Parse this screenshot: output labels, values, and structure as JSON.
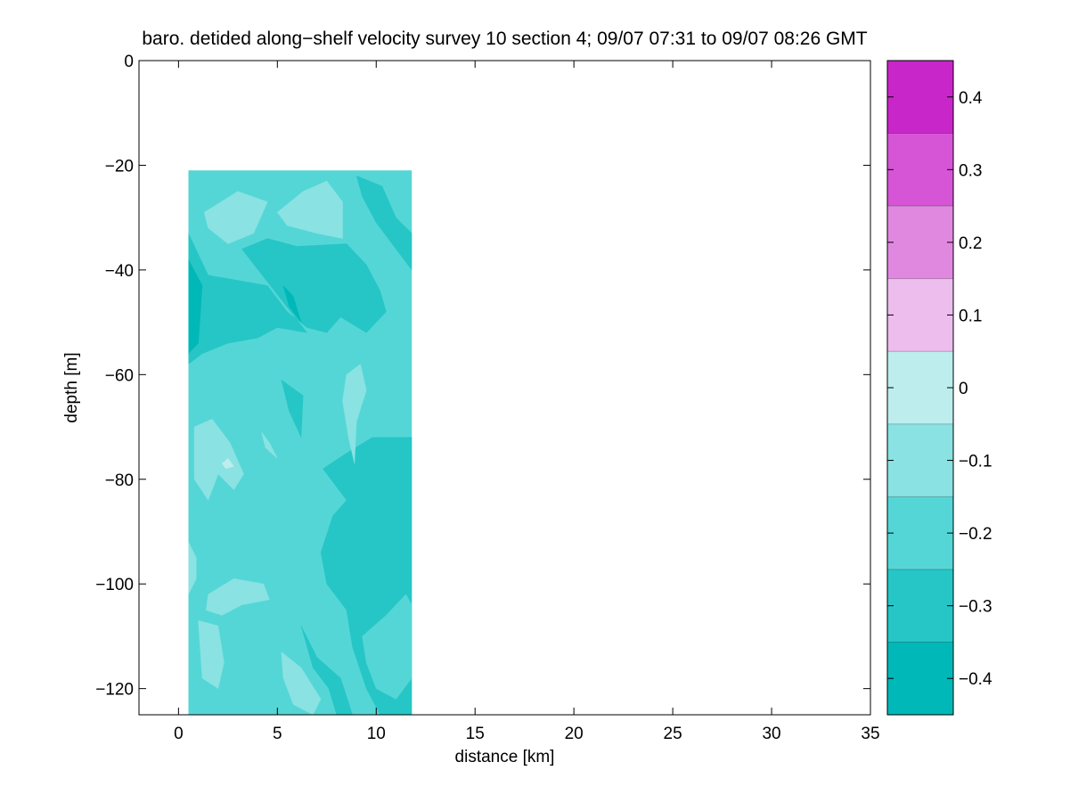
{
  "chart_data": {
    "type": "heatmap",
    "title": "baro. detided along−shelf velocity survey 10 section 4; 09/07 07:31 to 09/07 08:26 GMT",
    "xlabel": "distance [km]",
    "ylabel": "depth [m]",
    "xlim": [
      -2,
      35
    ],
    "ylim": [
      -125,
      0
    ],
    "xticks": [
      0,
      5,
      10,
      15,
      20,
      25,
      30,
      35
    ],
    "xtick_labels": [
      "0",
      "5",
      "10",
      "15",
      "20",
      "25",
      "30",
      "35"
    ],
    "yticks": [
      0,
      -20,
      -40,
      -60,
      -80,
      -100,
      -120
    ],
    "ytick_labels": [
      "0",
      "−20",
      "−40",
      "−60",
      "−80",
      "−100",
      "−120"
    ],
    "data_extent": {
      "x": [
        0.5,
        11.8
      ],
      "y": [
        -125,
        -21
      ]
    },
    "colorbar": {
      "levels": [
        -0.45,
        -0.35,
        -0.25,
        -0.15,
        -0.05,
        0.05,
        0.15,
        0.25,
        0.35,
        0.45
      ],
      "colors": [
        "#00b8b8",
        "#26c6c6",
        "#55d6d6",
        "#8ae2e2",
        "#bdeded",
        "#edbded",
        "#e088e0",
        "#d655d6",
        "#c926c9",
        "#b800b8"
      ],
      "ticks": [
        0.4,
        0.3,
        0.2,
        0.1,
        0,
        -0.1,
        -0.2,
        -0.3,
        -0.4
      ],
      "tick_labels": [
        "0.4",
        "0.3",
        "0.2",
        "0.1",
        "0",
        "−0.1",
        "−0.2",
        "−0.3",
        "−0.4"
      ],
      "lim": [
        -0.45,
        0.45
      ]
    },
    "regions": [
      {
        "level": -0.15,
        "polygon": [
          [
            0.5,
            -21
          ],
          [
            11.8,
            -21
          ],
          [
            11.8,
            -125
          ],
          [
            0.5,
            -125
          ]
        ]
      },
      {
        "level": -0.05,
        "polygon": [
          [
            1.3,
            -29
          ],
          [
            3,
            -25
          ],
          [
            4.5,
            -27
          ],
          [
            3.8,
            -33
          ],
          [
            2.5,
            -35
          ],
          [
            1.5,
            -32
          ]
        ]
      },
      {
        "level": -0.05,
        "polygon": [
          [
            5,
            -29
          ],
          [
            6.3,
            -25
          ],
          [
            7.5,
            -23
          ],
          [
            8.3,
            -27
          ],
          [
            8.3,
            -34
          ],
          [
            7,
            -33
          ],
          [
            5.5,
            -31.5
          ]
        ]
      },
      {
        "level": -0.25,
        "polygon": [
          [
            3.2,
            -36
          ],
          [
            4.5,
            -34
          ],
          [
            6,
            -35.5
          ],
          [
            8.5,
            -35
          ],
          [
            9.5,
            -39
          ],
          [
            10.2,
            -44
          ],
          [
            10.5,
            -48
          ],
          [
            9.5,
            -52
          ],
          [
            8.2,
            -49
          ],
          [
            7.5,
            -52
          ],
          [
            6.5,
            -51
          ],
          [
            5.5,
            -48
          ],
          [
            4.5,
            -43
          ],
          [
            3,
            -42
          ],
          [
            1.5,
            -41
          ],
          [
            0.5,
            -33
          ],
          [
            0.5,
            -58
          ],
          [
            1.2,
            -56
          ],
          [
            2.5,
            -54
          ],
          [
            4,
            -53
          ],
          [
            5,
            -51
          ],
          [
            6.5,
            -52
          ]
        ]
      },
      {
        "level": -0.25,
        "polygon": [
          [
            9,
            -22
          ],
          [
            10.3,
            -24
          ],
          [
            11,
            -30
          ],
          [
            11.8,
            -33
          ],
          [
            11.8,
            -40
          ],
          [
            10.8,
            -35
          ],
          [
            10,
            -31
          ],
          [
            9.3,
            -26
          ]
        ]
      },
      {
        "level": -0.35,
        "polygon": [
          [
            0.5,
            -38
          ],
          [
            1.2,
            -43
          ],
          [
            1,
            -54
          ],
          [
            0.5,
            -56
          ]
        ]
      },
      {
        "level": -0.35,
        "polygon": [
          [
            5.3,
            -43
          ],
          [
            5.8,
            -45
          ],
          [
            6.2,
            -50
          ],
          [
            5.6,
            -47
          ]
        ]
      },
      {
        "level": -0.25,
        "polygon": [
          [
            5.2,
            -61
          ],
          [
            6.3,
            -64
          ],
          [
            6.2,
            -72
          ],
          [
            5.6,
            -67
          ]
        ]
      },
      {
        "level": -0.25,
        "polygon": [
          [
            7.3,
            -78
          ],
          [
            8.5,
            -75
          ],
          [
            9.8,
            -72
          ],
          [
            11.8,
            -72
          ],
          [
            11.8,
            -125
          ],
          [
            10.2,
            -125
          ],
          [
            9.5,
            -120
          ],
          [
            8.8,
            -112
          ],
          [
            8.5,
            -105
          ],
          [
            7.5,
            -100
          ],
          [
            7.2,
            -94
          ],
          [
            7.8,
            -87
          ],
          [
            8.5,
            -84
          ]
        ]
      },
      {
        "level": -0.25,
        "polygon": [
          [
            6.2,
            -108
          ],
          [
            7,
            -114
          ],
          [
            8.2,
            -118
          ],
          [
            8.8,
            -125
          ],
          [
            8,
            -125
          ],
          [
            7.6,
            -120
          ],
          [
            6.8,
            -116
          ]
        ]
      },
      {
        "level": -0.15,
        "polygon": [
          [
            9.3,
            -110
          ],
          [
            10.5,
            -106
          ],
          [
            11.5,
            -102
          ],
          [
            11.8,
            -104
          ],
          [
            11.8,
            -118
          ],
          [
            11,
            -122
          ],
          [
            10,
            -120
          ],
          [
            9.5,
            -115
          ]
        ]
      },
      {
        "level": -0.05,
        "polygon": [
          [
            8.5,
            -60
          ],
          [
            9.2,
            -58
          ],
          [
            9.5,
            -63
          ],
          [
            9,
            -69
          ],
          [
            8.9,
            -77
          ],
          [
            8.6,
            -72
          ],
          [
            8.3,
            -65
          ]
        ]
      },
      {
        "level": -0.05,
        "polygon": [
          [
            0.8,
            -70
          ],
          [
            1.7,
            -68.5
          ],
          [
            2.6,
            -73
          ],
          [
            3.3,
            -79
          ],
          [
            2.8,
            -82
          ],
          [
            2,
            -79
          ],
          [
            1.5,
            -84
          ],
          [
            0.8,
            -80
          ]
        ]
      },
      {
        "level": -0.05,
        "polygon": [
          [
            4.2,
            -71
          ],
          [
            4.6,
            -73
          ],
          [
            5,
            -76
          ],
          [
            4.4,
            -74
          ]
        ]
      },
      {
        "level": -0.05,
        "polygon": [
          [
            1.5,
            -102
          ],
          [
            2.8,
            -99
          ],
          [
            4.3,
            -100
          ],
          [
            4.6,
            -103
          ],
          [
            3.2,
            -104
          ],
          [
            2.2,
            -106
          ],
          [
            1.4,
            -105
          ]
        ]
      },
      {
        "level": -0.05,
        "polygon": [
          [
            0.5,
            -92
          ],
          [
            0.9,
            -95
          ],
          [
            0.9,
            -99
          ],
          [
            0.5,
            -102
          ]
        ]
      },
      {
        "level": -0.05,
        "polygon": [
          [
            1,
            -107
          ],
          [
            2,
            -108
          ],
          [
            2.3,
            -115
          ],
          [
            2,
            -120
          ],
          [
            1.2,
            -118
          ]
        ]
      },
      {
        "level": -0.05,
        "polygon": [
          [
            5.2,
            -113
          ],
          [
            6.2,
            -116
          ],
          [
            7.2,
            -122
          ],
          [
            6.8,
            -125
          ],
          [
            5.8,
            -123
          ],
          [
            5.3,
            -118
          ]
        ]
      },
      {
        "level": 0.05,
        "polygon": [
          [
            2.2,
            -77
          ],
          [
            2.5,
            -76
          ],
          [
            2.8,
            -77.5
          ],
          [
            2.4,
            -78
          ]
        ]
      }
    ]
  }
}
